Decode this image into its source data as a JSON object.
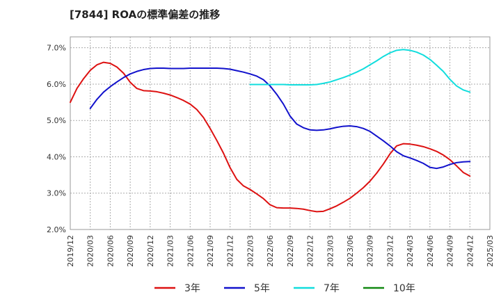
{
  "chart_data": {
    "type": "line",
    "title": "[7844]  ROAの標準偏差の推移",
    "xlabel": "",
    "ylabel": "",
    "ylim": [
      2.0,
      7.3
    ],
    "grid": true,
    "legend_position": "bottom",
    "x_ticks": [
      "2019/12",
      "2020/03",
      "2020/06",
      "2020/09",
      "2020/12",
      "2021/03",
      "2021/06",
      "2021/09",
      "2021/12",
      "2022/03",
      "2022/06",
      "2022/09",
      "2022/12",
      "2023/03",
      "2023/06",
      "2023/09",
      "2023/12",
      "2024/03",
      "2024/06",
      "2024/09",
      "2024/12",
      "2025/03"
    ],
    "y_ticks": [
      {
        "value": 2.0,
        "label": "2.0%"
      },
      {
        "value": 3.0,
        "label": "3.0%"
      },
      {
        "value": 4.0,
        "label": "4.0%"
      },
      {
        "value": 5.0,
        "label": "5.0%"
      },
      {
        "value": 6.0,
        "label": "6.0%"
      },
      {
        "value": 7.0,
        "label": "7.0%"
      }
    ],
    "series": [
      {
        "name": "3年",
        "color": "#dd1111",
        "points": [
          [
            0,
            5.5
          ],
          [
            1,
            5.88
          ],
          [
            2,
            6.15
          ],
          [
            3,
            6.38
          ],
          [
            4,
            6.53
          ],
          [
            5,
            6.6
          ],
          [
            6,
            6.57
          ],
          [
            7,
            6.47
          ],
          [
            8,
            6.3
          ],
          [
            9,
            6.05
          ],
          [
            10,
            5.88
          ],
          [
            11,
            5.82
          ],
          [
            12,
            5.81
          ],
          [
            13,
            5.79
          ],
          [
            14,
            5.75
          ],
          [
            15,
            5.7
          ],
          [
            16,
            5.63
          ],
          [
            17,
            5.55
          ],
          [
            18,
            5.45
          ],
          [
            19,
            5.3
          ],
          [
            20,
            5.08
          ],
          [
            21,
            4.78
          ],
          [
            22,
            4.45
          ],
          [
            23,
            4.1
          ],
          [
            24,
            3.7
          ],
          [
            25,
            3.38
          ],
          [
            26,
            3.2
          ],
          [
            27,
            3.1
          ],
          [
            28,
            2.98
          ],
          [
            29,
            2.85
          ],
          [
            30,
            2.68
          ],
          [
            31,
            2.6
          ],
          [
            32,
            2.59
          ],
          [
            33,
            2.59
          ],
          [
            34,
            2.58
          ],
          [
            35,
            2.56
          ],
          [
            36,
            2.52
          ],
          [
            37,
            2.49
          ],
          [
            38,
            2.5
          ],
          [
            39,
            2.57
          ],
          [
            40,
            2.65
          ],
          [
            41,
            2.75
          ],
          [
            42,
            2.86
          ],
          [
            43,
            3.0
          ],
          [
            44,
            3.15
          ],
          [
            45,
            3.33
          ],
          [
            46,
            3.55
          ],
          [
            47,
            3.8
          ],
          [
            48,
            4.08
          ],
          [
            49,
            4.3
          ],
          [
            50,
            4.36
          ],
          [
            51,
            4.35
          ],
          [
            52,
            4.32
          ],
          [
            53,
            4.28
          ],
          [
            54,
            4.22
          ],
          [
            55,
            4.15
          ],
          [
            56,
            4.05
          ],
          [
            57,
            3.92
          ],
          [
            58,
            3.75
          ],
          [
            59,
            3.57
          ],
          [
            60,
            3.47
          ]
        ]
      },
      {
        "name": "5年",
        "color": "#1111cc",
        "points": [
          [
            3,
            5.33
          ],
          [
            4,
            5.58
          ],
          [
            5,
            5.78
          ],
          [
            6,
            5.93
          ],
          [
            7,
            6.06
          ],
          [
            8,
            6.18
          ],
          [
            9,
            6.28
          ],
          [
            10,
            6.35
          ],
          [
            11,
            6.4
          ],
          [
            12,
            6.43
          ],
          [
            13,
            6.44
          ],
          [
            14,
            6.44
          ],
          [
            15,
            6.43
          ],
          [
            16,
            6.43
          ],
          [
            17,
            6.43
          ],
          [
            18,
            6.44
          ],
          [
            19,
            6.44
          ],
          [
            20,
            6.44
          ],
          [
            21,
            6.44
          ],
          [
            22,
            6.44
          ],
          [
            23,
            6.43
          ],
          [
            24,
            6.41
          ],
          [
            25,
            6.37
          ],
          [
            26,
            6.33
          ],
          [
            27,
            6.28
          ],
          [
            28,
            6.22
          ],
          [
            29,
            6.12
          ],
          [
            30,
            5.95
          ],
          [
            31,
            5.72
          ],
          [
            32,
            5.45
          ],
          [
            33,
            5.12
          ],
          [
            34,
            4.9
          ],
          [
            35,
            4.8
          ],
          [
            36,
            4.74
          ],
          [
            37,
            4.73
          ],
          [
            38,
            4.74
          ],
          [
            39,
            4.77
          ],
          [
            40,
            4.81
          ],
          [
            41,
            4.84
          ],
          [
            42,
            4.85
          ],
          [
            43,
            4.83
          ],
          [
            44,
            4.78
          ],
          [
            45,
            4.7
          ],
          [
            46,
            4.57
          ],
          [
            47,
            4.44
          ],
          [
            48,
            4.3
          ],
          [
            49,
            4.14
          ],
          [
            50,
            4.03
          ],
          [
            51,
            3.97
          ],
          [
            52,
            3.9
          ],
          [
            53,
            3.82
          ],
          [
            54,
            3.71
          ],
          [
            55,
            3.68
          ],
          [
            56,
            3.72
          ],
          [
            57,
            3.79
          ],
          [
            58,
            3.84
          ],
          [
            59,
            3.86
          ],
          [
            60,
            3.87
          ]
        ]
      },
      {
        "name": "7年",
        "color": "#11dddd",
        "points": [
          [
            27,
            5.99
          ],
          [
            28,
            5.99
          ],
          [
            29,
            5.99
          ],
          [
            30,
            5.99
          ],
          [
            31,
            5.99
          ],
          [
            32,
            5.99
          ],
          [
            33,
            5.98
          ],
          [
            34,
            5.98
          ],
          [
            35,
            5.98
          ],
          [
            36,
            5.98
          ],
          [
            37,
            5.99
          ],
          [
            38,
            6.02
          ],
          [
            39,
            6.06
          ],
          [
            40,
            6.12
          ],
          [
            41,
            6.18
          ],
          [
            42,
            6.25
          ],
          [
            43,
            6.33
          ],
          [
            44,
            6.42
          ],
          [
            45,
            6.53
          ],
          [
            46,
            6.64
          ],
          [
            47,
            6.76
          ],
          [
            48,
            6.86
          ],
          [
            49,
            6.93
          ],
          [
            50,
            6.95
          ],
          [
            51,
            6.93
          ],
          [
            52,
            6.88
          ],
          [
            53,
            6.8
          ],
          [
            54,
            6.68
          ],
          [
            55,
            6.52
          ],
          [
            56,
            6.35
          ],
          [
            57,
            6.13
          ],
          [
            58,
            5.95
          ],
          [
            59,
            5.84
          ],
          [
            60,
            5.78
          ]
        ]
      },
      {
        "name": "10年",
        "color": "#118811",
        "points": []
      }
    ]
  }
}
